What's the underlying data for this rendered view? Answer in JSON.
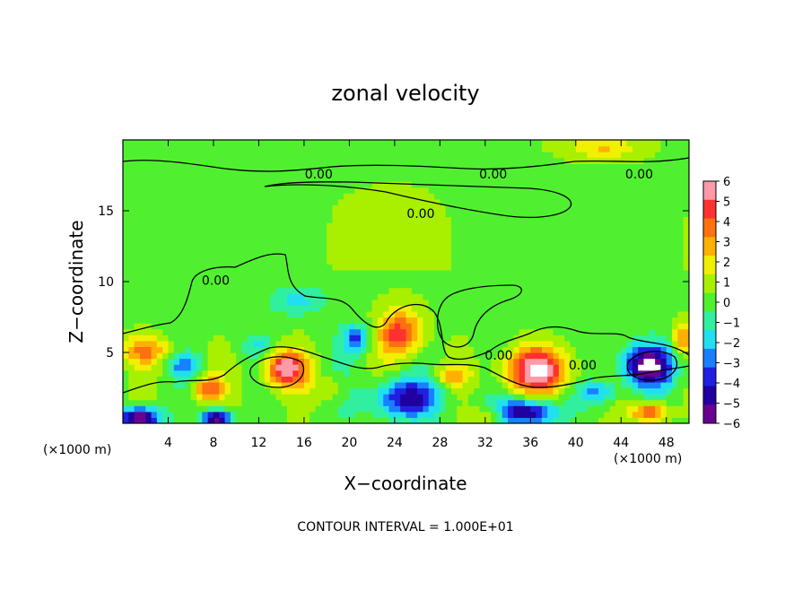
{
  "chart_data": {
    "type": "heatmap",
    "title": "zonal velocity",
    "xlabel": "X−coordinate",
    "ylabel": "Z−coordinate",
    "x_unit_left": "(×1000 m)",
    "x_unit_right": "(×1000 m)",
    "xlim": [
      0,
      50
    ],
    "ylim": [
      0,
      20
    ],
    "x_ticks": [
      4,
      8,
      12,
      16,
      20,
      24,
      28,
      32,
      36,
      40,
      44,
      48
    ],
    "x_tick_labels": [
      "4",
      "8",
      "12",
      "16",
      "20",
      "24",
      "28",
      "32",
      "36",
      "40",
      "44",
      "48"
    ],
    "y_ticks": [
      5,
      10,
      15
    ],
    "y_tick_labels": [
      "5",
      "10",
      "15"
    ],
    "colorbar": {
      "min": -6,
      "max": 6,
      "ticks": [
        6,
        5,
        4,
        3,
        2,
        1,
        0,
        -1,
        -2,
        -3,
        -4,
        -5,
        -6
      ],
      "tick_labels": [
        "6",
        "5",
        "4",
        "3",
        "2",
        "1",
        "0",
        "−1",
        "−2",
        "−3",
        "−4",
        "−5",
        "−6"
      ],
      "colors": [
        "#ff9aa8",
        "#ff3030",
        "#ff7010",
        "#ffb000",
        "#f0f000",
        "#a8f000",
        "#50f030",
        "#30f0a0",
        "#20e0f0",
        "#1880ff",
        "#2020e0",
        "#2000a0",
        "#6a0090"
      ]
    },
    "contour_value_label": "0.00",
    "contour_label_positions": [
      {
        "x": 17.3,
        "z": 17.6
      },
      {
        "x": 32.7,
        "z": 17.6
      },
      {
        "x": 45.6,
        "z": 17.6
      },
      {
        "x": 26.3,
        "z": 14.8
      },
      {
        "x": 8.2,
        "z": 10.1
      },
      {
        "x": 33.2,
        "z": 4.8
      },
      {
        "x": 40.6,
        "z": 4.1
      }
    ],
    "features": [
      {
        "x": 24.5,
        "z": 6.3,
        "value": 4.5,
        "rx": 2.0,
        "rz": 1.7
      },
      {
        "x": 36.5,
        "z": 3.8,
        "value": 5.5,
        "rx": 3.0,
        "rz": 1.6
      },
      {
        "x": 14.3,
        "z": 3.9,
        "value": 5.5,
        "rx": 1.9,
        "rz": 1.3
      },
      {
        "x": 46.3,
        "z": 4.1,
        "value": -6.5,
        "rx": 2.3,
        "rz": 1.4
      },
      {
        "x": 25.0,
        "z": 1.8,
        "value": -4.5,
        "rx": 3.0,
        "rz": 1.3
      },
      {
        "x": 20.6,
        "z": 6.0,
        "value": -3.5,
        "rx": 1.2,
        "rz": 1.0
      },
      {
        "x": 15.5,
        "z": 8.7,
        "value": -1.8,
        "rx": 2.5,
        "rz": 1.0
      },
      {
        "x": 2.0,
        "z": 5.2,
        "value": 3.0,
        "rx": 2.2,
        "rz": 1.0
      },
      {
        "x": 7.5,
        "z": 2.5,
        "value": 3.5,
        "rx": 1.2,
        "rz": 0.8
      },
      {
        "x": 5.5,
        "z": 4.2,
        "value": -3.0,
        "rx": 1.4,
        "rz": 0.7
      },
      {
        "x": 1.5,
        "z": 0.4,
        "value": -6.5,
        "rx": 1.8,
        "rz": 0.8
      },
      {
        "x": 8.3,
        "z": 0.4,
        "value": -6.5,
        "rx": 1.3,
        "rz": 0.6
      },
      {
        "x": 35.5,
        "z": 0.8,
        "value": -6.0,
        "rx": 2.8,
        "rz": 0.9
      },
      {
        "x": 46.6,
        "z": 0.8,
        "value": 4.5,
        "rx": 1.6,
        "rz": 0.7
      },
      {
        "x": 29.0,
        "z": 3.4,
        "value": 2.5,
        "rx": 1.6,
        "rz": 0.7
      },
      {
        "x": 42.0,
        "z": 2.2,
        "value": -3.0,
        "rx": 1.8,
        "rz": 0.8
      },
      {
        "x": 32.5,
        "z": 0.6,
        "value": 2.5,
        "rx": 2.0,
        "rz": 0.6
      },
      {
        "x": 49.5,
        "z": 6.0,
        "value": 3.0,
        "rx": 1.0,
        "rz": 1.2
      },
      {
        "x": 18.5,
        "z": 2.5,
        "value": 1.5,
        "rx": 1.5,
        "rz": 1.0
      },
      {
        "x": 42.5,
        "z": 19.5,
        "value": 2.0,
        "rx": 3.0,
        "rz": 0.8
      },
      {
        "x": 12.0,
        "z": 5.5,
        "value": -1.5,
        "rx": 1.5,
        "rz": 0.8
      }
    ],
    "note": "CONTOUR INTERVAL = 1.000E+01"
  }
}
